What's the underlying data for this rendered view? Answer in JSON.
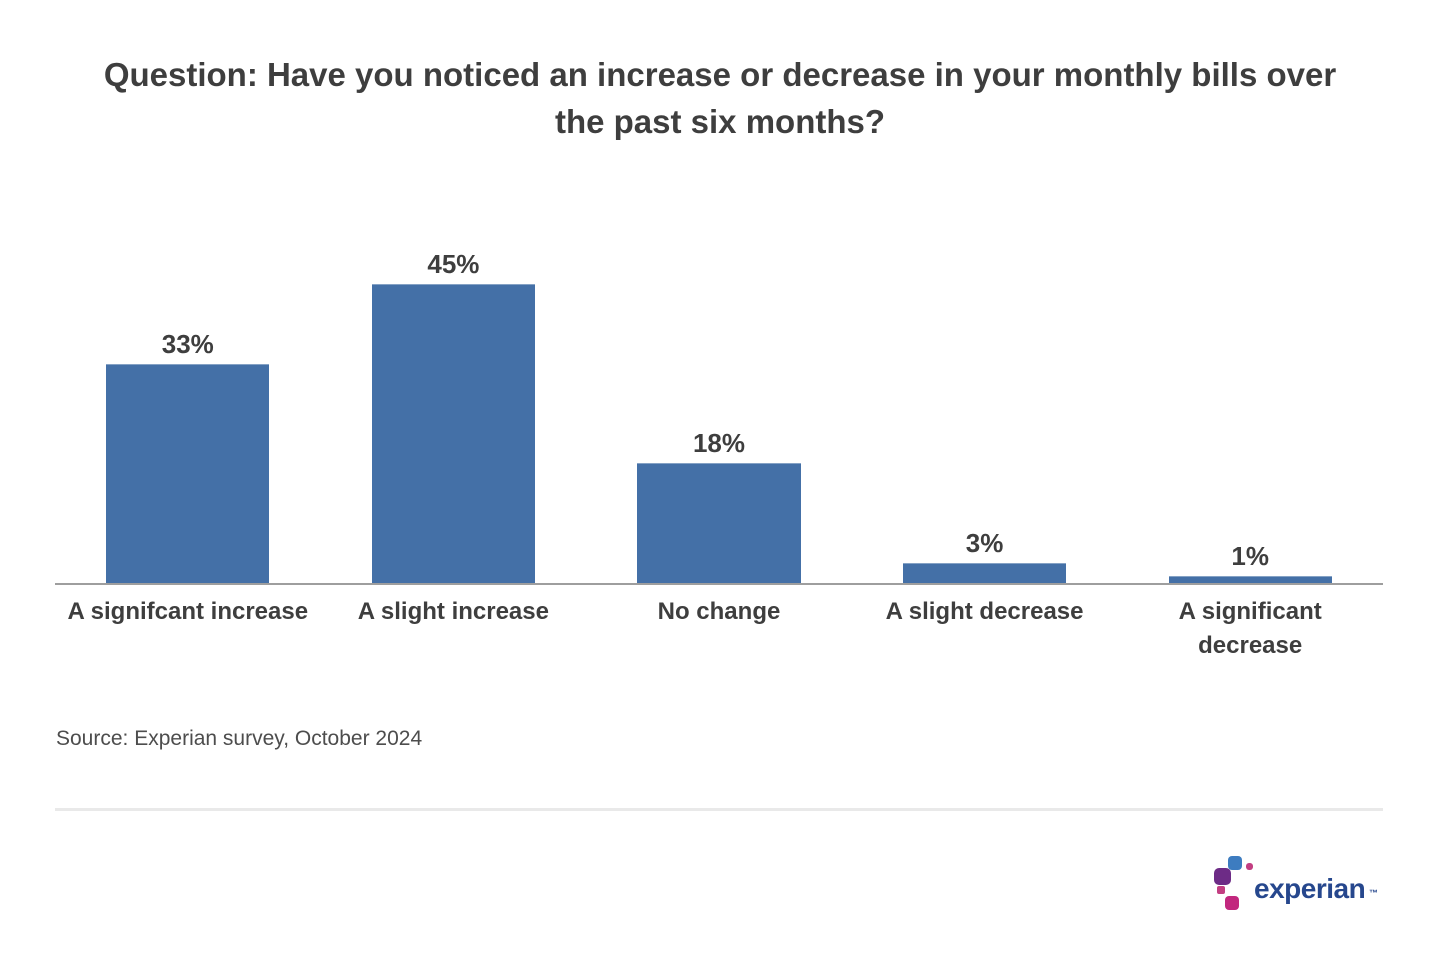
{
  "title": "Question: Have you noticed an increase or decrease in your monthly bills over\nthe past six months?",
  "chart_data": {
    "type": "bar",
    "title": "Question: Have you noticed an increase or decrease in your monthly bills over the past six months?",
    "categories": [
      "A signifcant increase",
      "A slight increase",
      "No change",
      "A slight decrease",
      "A significant\ndecrease"
    ],
    "values": [
      33,
      45,
      18,
      3,
      1
    ],
    "data_labels": [
      "33%",
      "45%",
      "18%",
      "3%",
      "1%"
    ],
    "value_suffix": "%",
    "xlabel": "",
    "ylabel": "",
    "ylim": [
      0,
      50
    ],
    "grid": false,
    "legend": "none",
    "bar_color": "#4470a7",
    "axis_color": "#9e9e9e"
  },
  "source": "Source: Experian survey, October 2024",
  "logo": {
    "text": "experian",
    "trademark": "™",
    "colors": {
      "wordmark": "#26478d",
      "blue": "#3d7cc0",
      "purple": "#6d2b86",
      "pink": "#c33e82",
      "magenta": "#c2277e"
    }
  },
  "colors": {
    "background": "#ffffff",
    "bar": "#4470a7",
    "axis": "#9e9e9e",
    "text": "#3e3e3e",
    "source_text": "#4d4d4d",
    "divider": "#e9e9e9"
  }
}
